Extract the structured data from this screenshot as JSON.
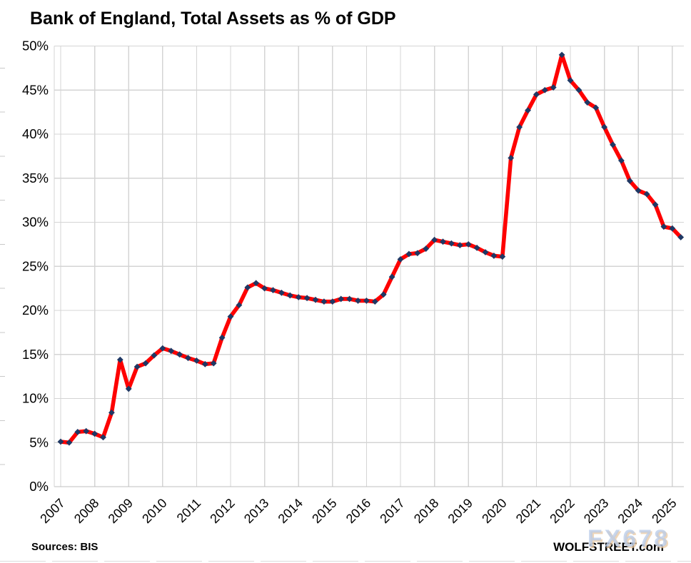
{
  "page": {
    "title": "Bank of England, Total Assets as % of GDP",
    "source_label": "Sources: BIS",
    "brand": "WOLFSTREET.com",
    "watermark": "FX678"
  },
  "colors": {
    "line": "#FE0000",
    "marker": "#1F3864",
    "gridline": "#D4D4D4",
    "axis": "#BFBFBF",
    "minor_tick": "#C9C9C9",
    "text": "#000000"
  },
  "chart_data": {
    "type": "line",
    "title": "Bank of England, Total Assets as % of GDP",
    "x_unit": "quarter",
    "start": "2007Q1",
    "end": "2025Q2",
    "years": [
      2007,
      2008,
      2009,
      2010,
      2011,
      2012,
      2013,
      2014,
      2015,
      2016,
      2017,
      2018,
      2019,
      2020,
      2021,
      2022,
      2023,
      2024,
      2025
    ],
    "values": [
      5.1,
      5.0,
      6.2,
      6.3,
      6.0,
      5.6,
      8.4,
      14.4,
      11.1,
      13.6,
      14.0,
      14.9,
      15.7,
      15.4,
      15.0,
      14.6,
      14.3,
      13.9,
      14.0,
      16.9,
      19.3,
      20.6,
      22.6,
      23.1,
      22.5,
      22.3,
      22.0,
      21.7,
      21.5,
      21.4,
      21.2,
      21.0,
      21.0,
      21.3,
      21.3,
      21.1,
      21.1,
      21.0,
      21.8,
      23.8,
      25.8,
      26.4,
      26.5,
      27.0,
      28.0,
      27.8,
      27.6,
      27.4,
      27.5,
      27.1,
      26.6,
      26.2,
      26.1,
      37.3,
      40.8,
      42.7,
      44.5,
      45.0,
      45.3,
      49.0,
      46.1,
      45.0,
      43.6,
      43.0,
      40.8,
      38.8,
      37.0,
      34.7,
      33.6,
      33.2,
      32.0,
      29.5,
      29.3,
      28.3
    ],
    "ylim": [
      0,
      50
    ],
    "y_tick_step": 5,
    "y_tick_labels": [
      "0%",
      "5%",
      "10%",
      "15%",
      "20%",
      "25%",
      "30%",
      "35%",
      "40%",
      "45%",
      "50%"
    ],
    "grid": true,
    "legend": false,
    "line_style": "thick solid",
    "marker": "diamond"
  }
}
